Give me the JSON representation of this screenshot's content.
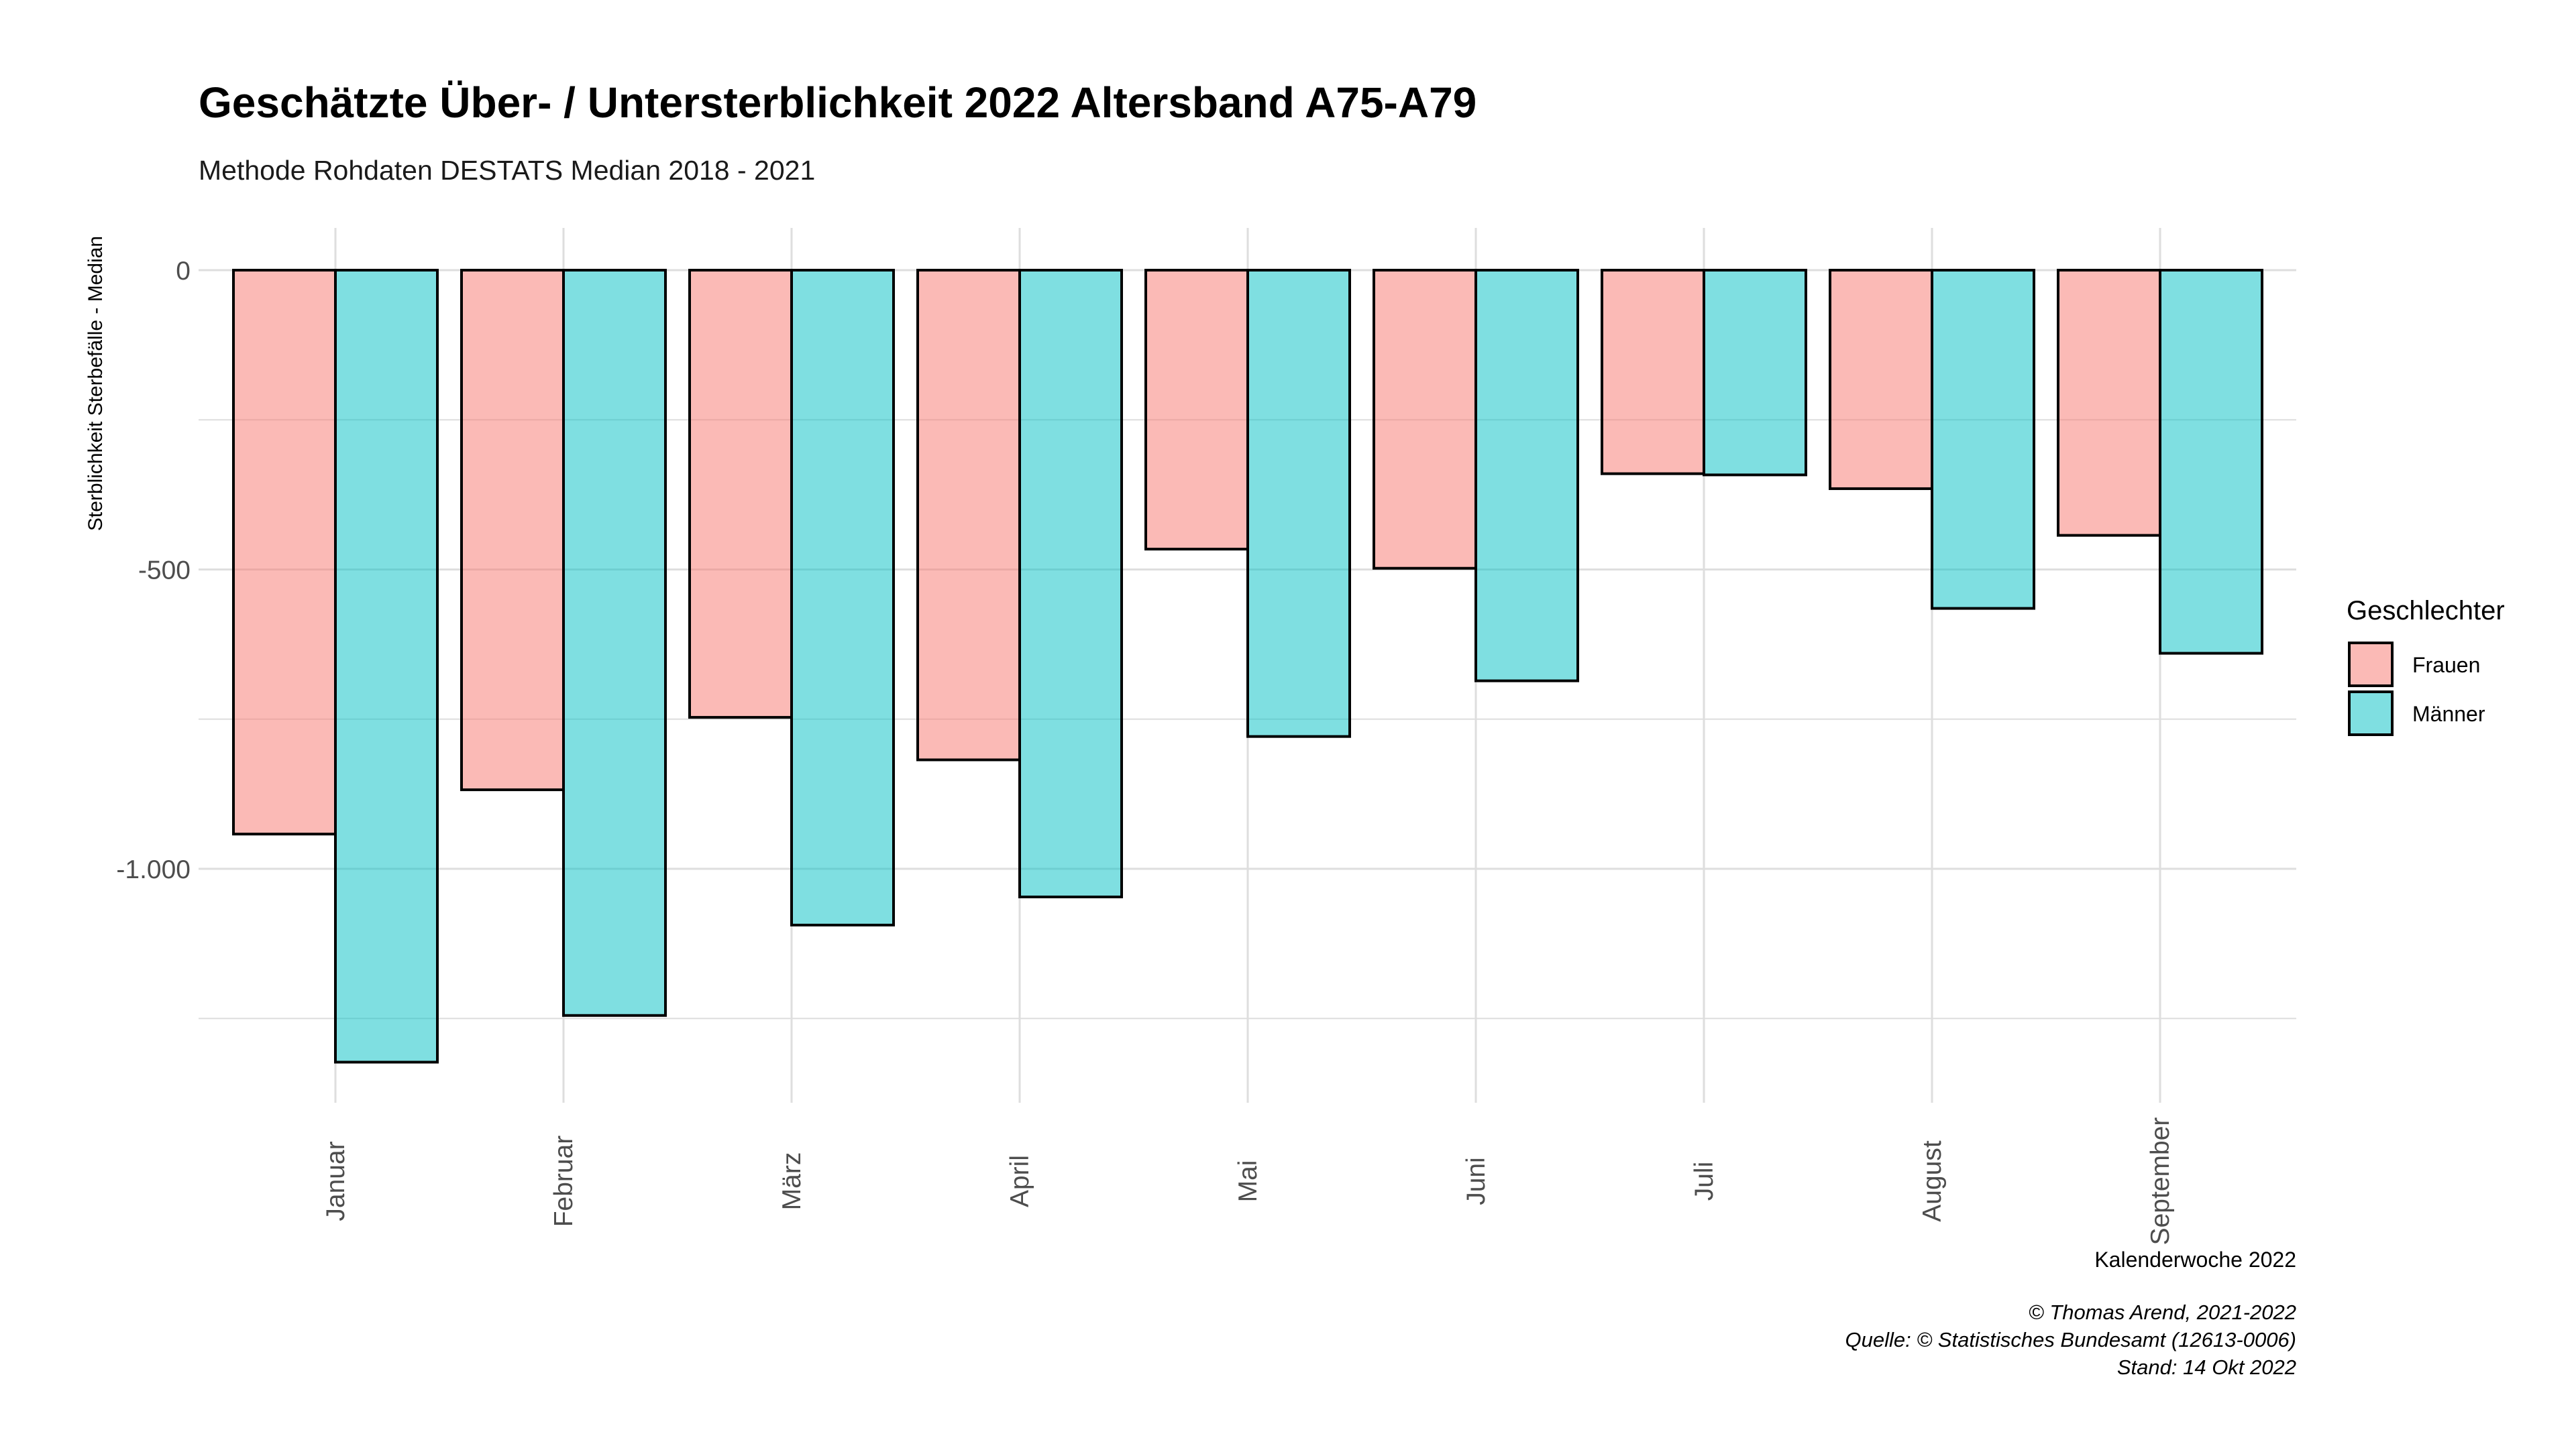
{
  "chart_data": {
    "type": "bar",
    "title": "Geschätzte Über- / Untersterblichkeit 2022 Altersband A75-A79",
    "subtitle": "Methode Rohdaten DESTATS Median 2018 - 2021",
    "xlabel": "Kalenderwoche 2022",
    "ylabel": "Sterblichkeit Sterbefälle - Median",
    "categories": [
      "Januar",
      "Februar",
      "März",
      "April",
      "Mai",
      "Juni",
      "Juli",
      "August",
      "September"
    ],
    "series": [
      {
        "name": "Frauen",
        "color": "#F8766D",
        "values": [
          -942,
          -868,
          -747,
          -818,
          -466,
          -498,
          -340,
          -365,
          -443
        ]
      },
      {
        "name": "Männer",
        "color": "#00BFC4",
        "values": [
          -1323,
          -1245,
          -1094,
          -1047,
          -779,
          -686,
          -342,
          -565,
          -640
        ]
      }
    ],
    "ylim": [
      -1400,
      60
    ],
    "yticks": [
      0,
      -500,
      -1000
    ],
    "ytick_labels": [
      "0",
      "-500",
      "-1.000"
    ],
    "grid": true,
    "legend": {
      "title": "Geschlechter",
      "position": "right"
    },
    "caption": [
      "© Thomas Arend, 2021-2022",
      "Quelle: © Statistisches Bundesamt (12613-0006)",
      "Stand: 14 Okt 2022"
    ]
  }
}
